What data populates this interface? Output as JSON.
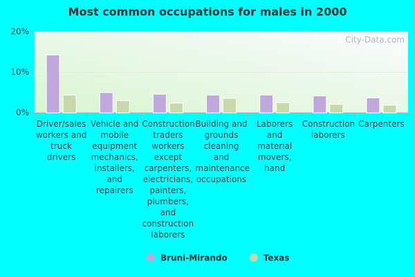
{
  "chart_data": {
    "type": "bar",
    "title": "Most common occupations for males in 2000",
    "watermark": "City-Data.com",
    "categories": [
      "Driver/sales workers and truck drivers",
      "Vehicle and mobile equipment mechanics, installers, and repairers",
      "Construction traders workers except carpenters, electricians, painters, plumbers, and construction laborers",
      "Building and grounds cleaning and maintenance occupations",
      "Laborers and material movers, hand",
      "Construction laborers",
      "Carpenters"
    ],
    "series": [
      {
        "name": "Bruni-Mirando",
        "color": "#c0a8dc",
        "values": [
          14.3,
          5.0,
          4.6,
          4.4,
          4.4,
          4.2,
          3.7
        ]
      },
      {
        "name": "Texas",
        "color": "#c8d8a8",
        "values": [
          4.4,
          3.0,
          2.4,
          3.6,
          2.5,
          2.1,
          1.9
        ]
      }
    ],
    "ylim": [
      0,
      20
    ],
    "yticks": [
      {
        "value": 0,
        "label": "0%"
      },
      {
        "value": 10,
        "label": "10%"
      },
      {
        "value": 20,
        "label": "20%"
      }
    ],
    "grid": true
  }
}
